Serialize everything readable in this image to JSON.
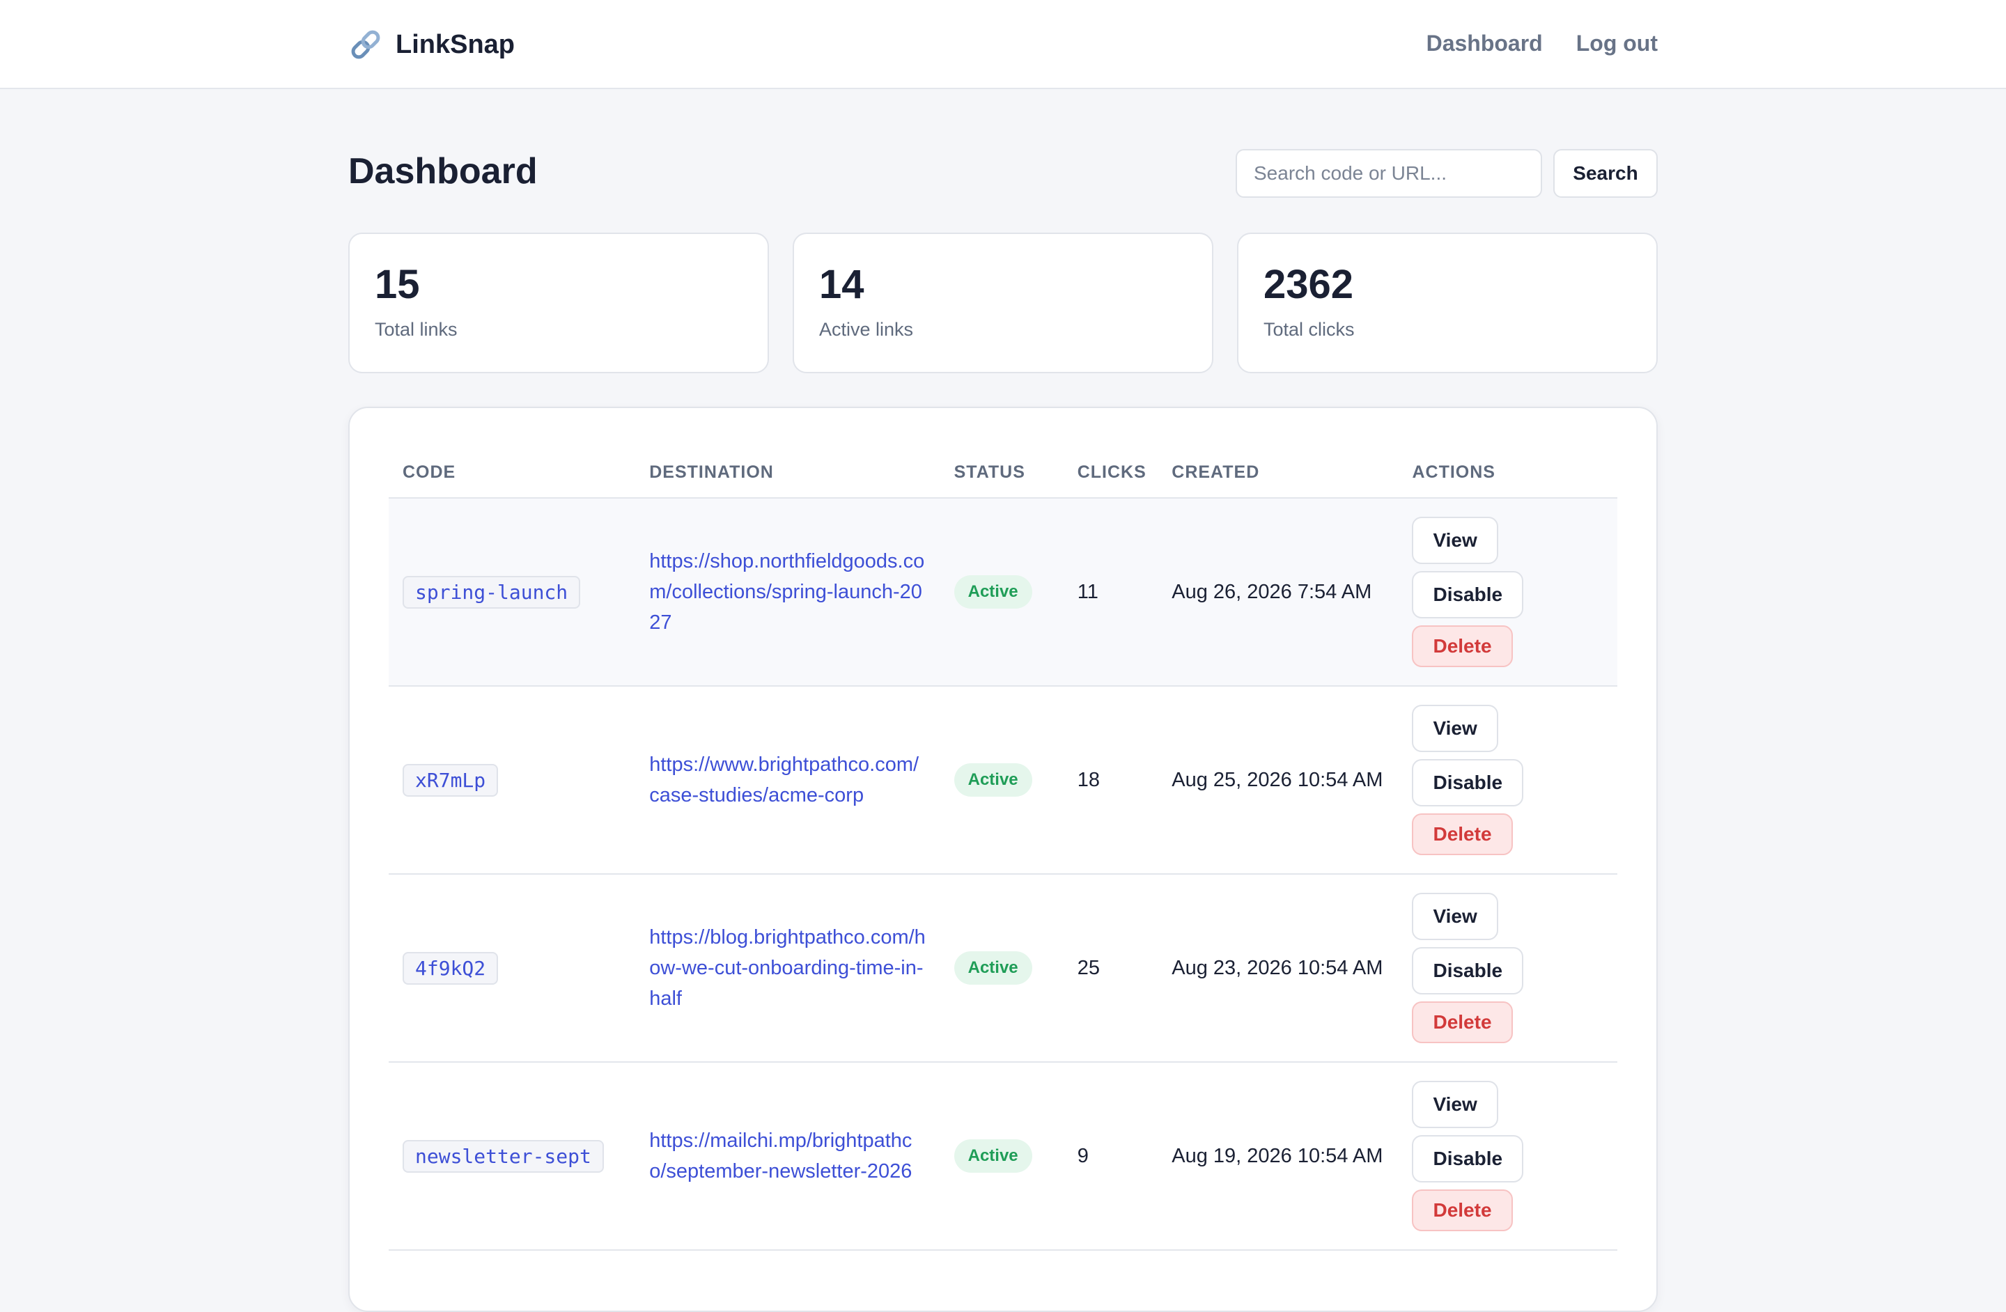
{
  "app": {
    "name": "LinkSnap",
    "logo_icon": "link-icon"
  },
  "nav": {
    "dashboard": "Dashboard",
    "logout": "Log out"
  },
  "page": {
    "title": "Dashboard"
  },
  "search": {
    "placeholder": "Search code or URL...",
    "value": "",
    "button_label": "Search"
  },
  "stats": [
    {
      "value": "15",
      "label": "Total links"
    },
    {
      "value": "14",
      "label": "Active links"
    },
    {
      "value": "2362",
      "label": "Total clicks"
    }
  ],
  "table": {
    "headers": {
      "code": "CODE",
      "destination": "DESTINATION",
      "status": "STATUS",
      "clicks": "CLICKS",
      "created": "CREATED",
      "actions": "ACTIONS"
    },
    "actions": {
      "view": "View",
      "disable": "Disable",
      "delete": "Delete"
    },
    "rows": [
      {
        "code": "spring-launch",
        "destination": "https://shop.northfieldgoods.com/collections/spring-launch-2027",
        "status": "Active",
        "clicks": "11",
        "created": "Aug 26, 2026 7:54 AM"
      },
      {
        "code": "xR7mLp",
        "destination": "https://www.brightpathco.com/case-studies/acme-corp",
        "status": "Active",
        "clicks": "18",
        "created": "Aug 25, 2026 10:54 AM"
      },
      {
        "code": "4f9kQ2",
        "destination": "https://blog.brightpathco.com/how-we-cut-onboarding-time-in-half",
        "status": "Active",
        "clicks": "25",
        "created": "Aug 23, 2026 10:54 AM"
      },
      {
        "code": "newsletter-sept",
        "destination": "https://mailchi.mp/brightpathco/september-newsletter-2026",
        "status": "Active",
        "clicks": "9",
        "created": "Aug 19, 2026 10:54 AM"
      }
    ]
  },
  "colors": {
    "accent": "#3d4fd6",
    "success": "#1f9d57",
    "danger": "#d23a3a",
    "background": "#f5f6f9"
  }
}
